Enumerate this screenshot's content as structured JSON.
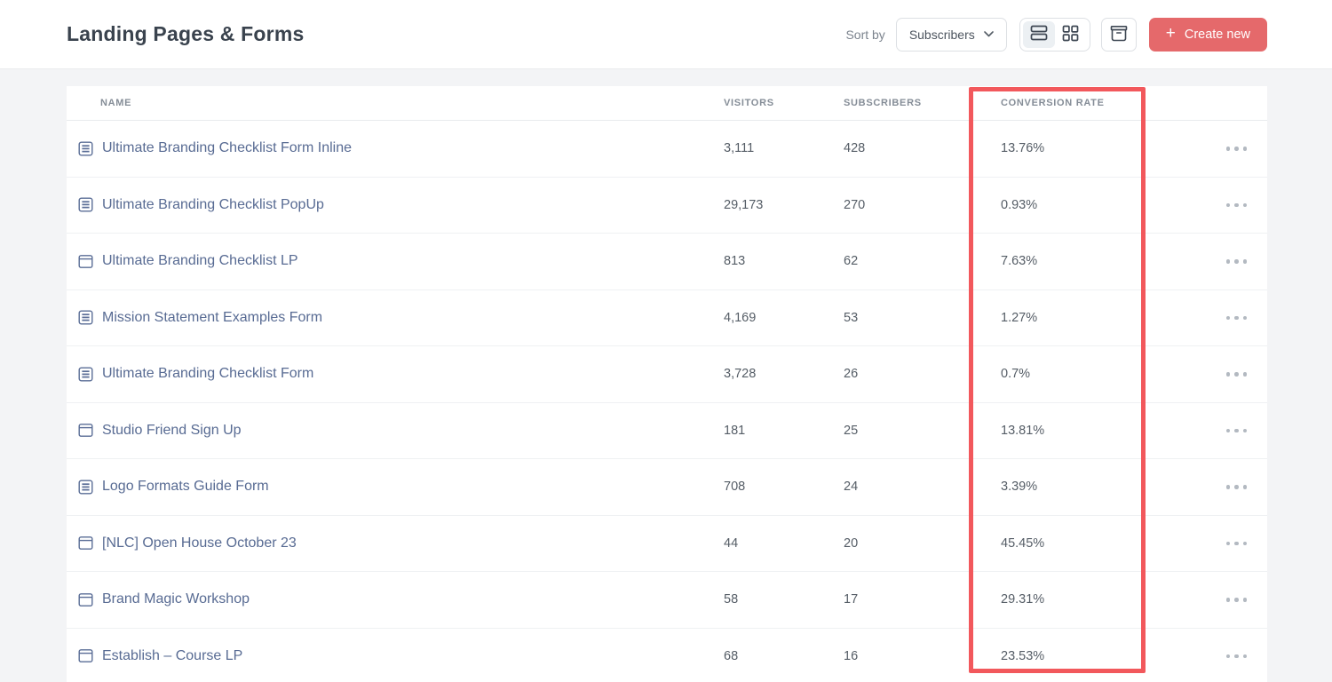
{
  "header": {
    "title": "Landing Pages & Forms"
  },
  "toolbar": {
    "sort_by_label": "Sort by",
    "sort_value": "Subscribers",
    "create_plus": "+",
    "create_label": "Create new",
    "view_mode_active": "list"
  },
  "colors": {
    "accent_button": "#e5696b",
    "highlight_box": "#f2585c",
    "link_text": "#586b93",
    "page_background": "#f3f4f6"
  },
  "table": {
    "columns": [
      "NAME",
      "VISITORS",
      "SUBSCRIBERS",
      "CONVERSION RATE"
    ],
    "highlighted_column": "CONVERSION RATE",
    "rows": [
      {
        "icon": "form-icon",
        "name": "Ultimate Branding Checklist Form Inline",
        "visitors": "3,111",
        "subscribers": "428",
        "conversion": "13.76%"
      },
      {
        "icon": "form-icon",
        "name": "Ultimate Branding Checklist PopUp",
        "visitors": "29,173",
        "subscribers": "270",
        "conversion": "0.93%"
      },
      {
        "icon": "landing-page-icon",
        "name": "Ultimate Branding Checklist LP",
        "visitors": "813",
        "subscribers": "62",
        "conversion": "7.63%"
      },
      {
        "icon": "form-icon",
        "name": "Mission Statement Examples Form",
        "visitors": "4,169",
        "subscribers": "53",
        "conversion": "1.27%"
      },
      {
        "icon": "form-icon",
        "name": "Ultimate Branding Checklist Form",
        "visitors": "3,728",
        "subscribers": "26",
        "conversion": "0.7%"
      },
      {
        "icon": "landing-page-icon",
        "name": "Studio Friend Sign Up",
        "visitors": "181",
        "subscribers": "25",
        "conversion": "13.81%"
      },
      {
        "icon": "form-icon",
        "name": "Logo Formats Guide Form",
        "visitors": "708",
        "subscribers": "24",
        "conversion": "3.39%"
      },
      {
        "icon": "landing-page-icon",
        "name": "[NLC] Open House October 23",
        "visitors": "44",
        "subscribers": "20",
        "conversion": "45.45%"
      },
      {
        "icon": "landing-page-icon",
        "name": "Brand Magic Workshop",
        "visitors": "58",
        "subscribers": "17",
        "conversion": "29.31%"
      },
      {
        "icon": "landing-page-icon",
        "name": "Establish – Course LP",
        "visitors": "68",
        "subscribers": "16",
        "conversion": "23.53%"
      }
    ]
  }
}
